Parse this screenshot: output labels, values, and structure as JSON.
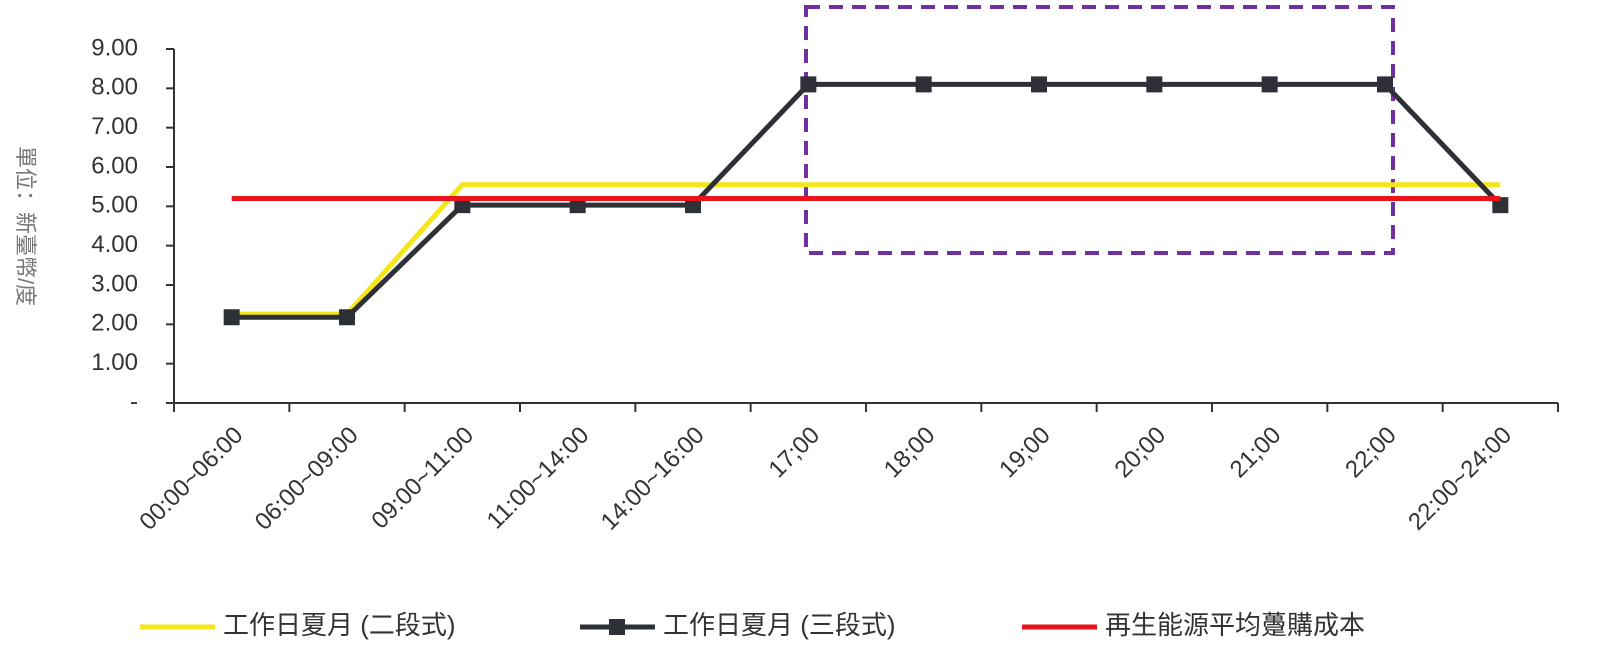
{
  "chart_data": {
    "type": "line",
    "y_label": "單位：新臺幣/度",
    "categories": [
      "00:00~06:00",
      "06:00~09:00",
      "09:00~11:00",
      "11:00~14:00",
      "14:00~16:00",
      "17;00",
      "18;00",
      "19;00",
      "20;00",
      "21;00",
      "22;00",
      "22:00~24:00"
    ],
    "series": [
      {
        "name": "工作日夏月 (二段式)",
        "color": "#f5e61c",
        "marker": false,
        "values": [
          2.26,
          2.26,
          5.55,
          5.55,
          5.55,
          5.55,
          5.55,
          5.55,
          5.55,
          5.55,
          5.55,
          5.55
        ]
      },
      {
        "name": "工作日夏月 (三段式)",
        "color": "#2e3038",
        "marker": true,
        "values": [
          2.18,
          2.18,
          5.03,
          5.03,
          5.03,
          8.1,
          8.1,
          8.1,
          8.1,
          8.1,
          8.1,
          5.03
        ]
      },
      {
        "name": "再生能源平均躉購成本",
        "color": "#e8131b",
        "marker": false,
        "values": [
          5.2,
          5.2,
          5.2,
          5.2,
          5.2,
          5.2,
          5.2,
          5.2,
          5.2,
          5.2,
          5.2,
          5.2
        ]
      }
    ],
    "ylim": [
      0,
      9
    ],
    "yticks": [
      {
        "value": 0,
        "label": "-"
      },
      {
        "value": 1,
        "label": "1.00"
      },
      {
        "value": 2,
        "label": "2.00"
      },
      {
        "value": 3,
        "label": "3.00"
      },
      {
        "value": 4,
        "label": "4.00"
      },
      {
        "value": 5,
        "label": "5.00"
      },
      {
        "value": 6,
        "label": "6.00"
      },
      {
        "value": 7,
        "label": "7.00"
      },
      {
        "value": 8,
        "label": "8.00"
      },
      {
        "value": 9,
        "label": "9.00"
      }
    ],
    "legend": "bottom"
  }
}
